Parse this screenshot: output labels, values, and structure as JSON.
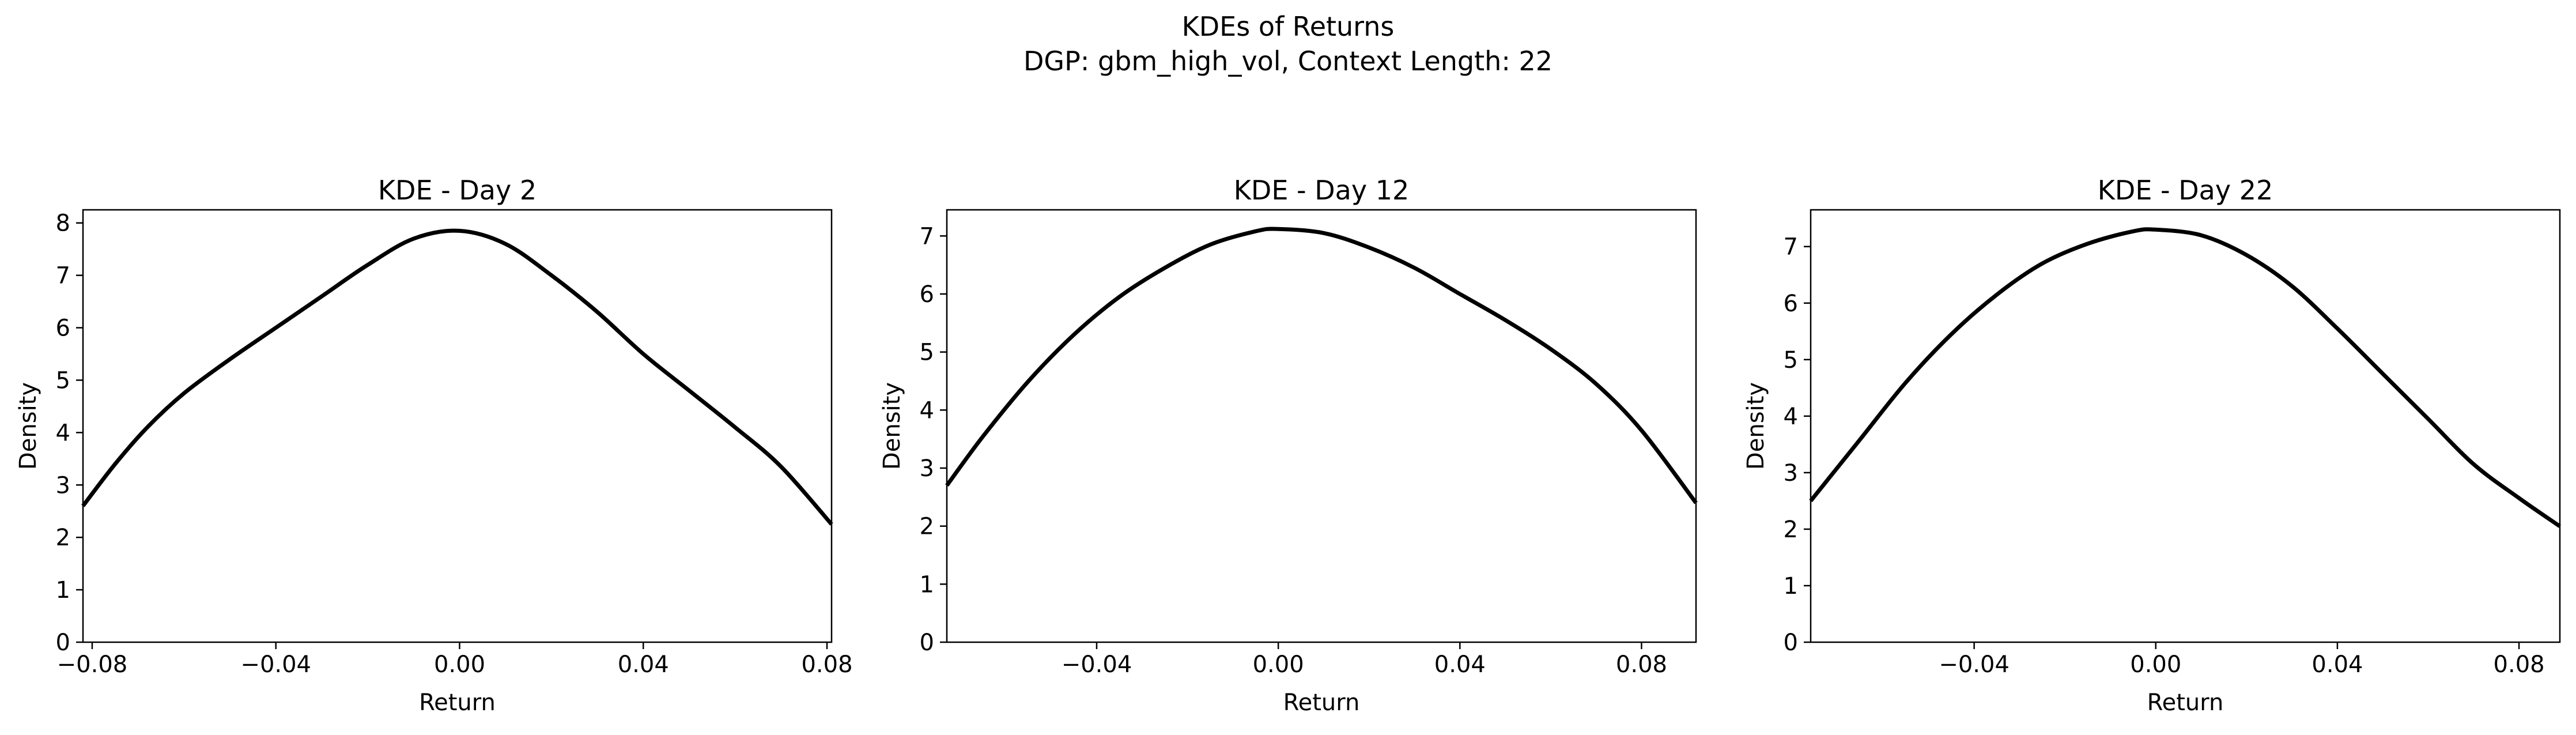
{
  "figure": {
    "suptitle_line1": "KDEs of Returns",
    "suptitle_line2": "DGP: gbm_high_vol, Context Length: 22"
  },
  "chart_data": [
    {
      "type": "line",
      "title": "KDE - Day 2",
      "xlabel": "Return",
      "ylabel": "Density",
      "xlim": [
        -0.082,
        0.081
      ],
      "ylim": [
        0,
        8.25
      ],
      "xticks": [
        "−0.08",
        "−0.04",
        "0.00",
        "0.04",
        "0.08"
      ],
      "xtick_values": [
        -0.08,
        -0.04,
        0.0,
        0.04,
        0.08
      ],
      "yticks": [
        "0",
        "1",
        "2",
        "3",
        "4",
        "5",
        "6",
        "7",
        "8"
      ],
      "ytick_values": [
        0,
        1,
        2,
        3,
        4,
        5,
        6,
        7,
        8
      ],
      "grid": false,
      "line_color": "#000000",
      "series": [
        {
          "x": [
            -0.082,
            -0.075,
            -0.068,
            -0.06,
            -0.05,
            -0.04,
            -0.03,
            -0.02,
            -0.01,
            0.0,
            0.01,
            0.02,
            0.03,
            0.04,
            0.05,
            0.06,
            0.07,
            0.081
          ],
          "values": [
            2.6,
            3.4,
            4.1,
            4.75,
            5.4,
            6.0,
            6.6,
            7.2,
            7.7,
            7.85,
            7.6,
            7.0,
            6.3,
            5.5,
            4.8,
            4.1,
            3.35,
            2.25
          ]
        }
      ]
    },
    {
      "type": "line",
      "title": "KDE - Day 12",
      "xlabel": "Return",
      "ylabel": "Density",
      "xlim": [
        -0.073,
        0.092
      ],
      "ylim": [
        0,
        7.45
      ],
      "xticks": [
        "−0.04",
        "0.00",
        "0.04",
        "0.08"
      ],
      "xtick_values": [
        -0.04,
        0.0,
        0.04,
        0.08
      ],
      "yticks": [
        "0",
        "1",
        "2",
        "3",
        "4",
        "5",
        "6",
        "7"
      ],
      "ytick_values": [
        0,
        1,
        2,
        3,
        4,
        5,
        6,
        7
      ],
      "grid": false,
      "line_color": "#000000",
      "series": [
        {
          "x": [
            -0.073,
            -0.065,
            -0.055,
            -0.045,
            -0.035,
            -0.025,
            -0.015,
            -0.005,
            0.0,
            0.01,
            0.02,
            0.03,
            0.04,
            0.05,
            0.06,
            0.07,
            0.08,
            0.092
          ],
          "values": [
            2.7,
            3.55,
            4.5,
            5.3,
            5.95,
            6.45,
            6.85,
            7.08,
            7.12,
            7.05,
            6.8,
            6.45,
            6.0,
            5.55,
            5.05,
            4.45,
            3.65,
            2.4
          ]
        }
      ]
    },
    {
      "type": "line",
      "title": "KDE - Day 22",
      "xlabel": "Return",
      "ylabel": "Density",
      "xlim": [
        -0.076,
        0.089
      ],
      "ylim": [
        0,
        7.65
      ],
      "xticks": [
        "−0.04",
        "0.00",
        "0.04",
        "0.08"
      ],
      "xtick_values": [
        -0.04,
        0.0,
        0.04,
        0.08
      ],
      "yticks": [
        "0",
        "1",
        "2",
        "3",
        "4",
        "5",
        "6",
        "7"
      ],
      "ytick_values": [
        0,
        1,
        2,
        3,
        4,
        5,
        6,
        7
      ],
      "grid": false,
      "line_color": "#000000",
      "series": [
        {
          "x": [
            -0.076,
            -0.065,
            -0.055,
            -0.045,
            -0.035,
            -0.025,
            -0.015,
            -0.005,
            0.0,
            0.01,
            0.02,
            0.03,
            0.04,
            0.05,
            0.06,
            0.07,
            0.08,
            0.089
          ],
          "values": [
            2.5,
            3.6,
            4.6,
            5.45,
            6.15,
            6.7,
            7.05,
            7.27,
            7.3,
            7.2,
            6.85,
            6.3,
            5.55,
            4.75,
            3.95,
            3.15,
            2.55,
            2.05
          ]
        }
      ]
    }
  ]
}
